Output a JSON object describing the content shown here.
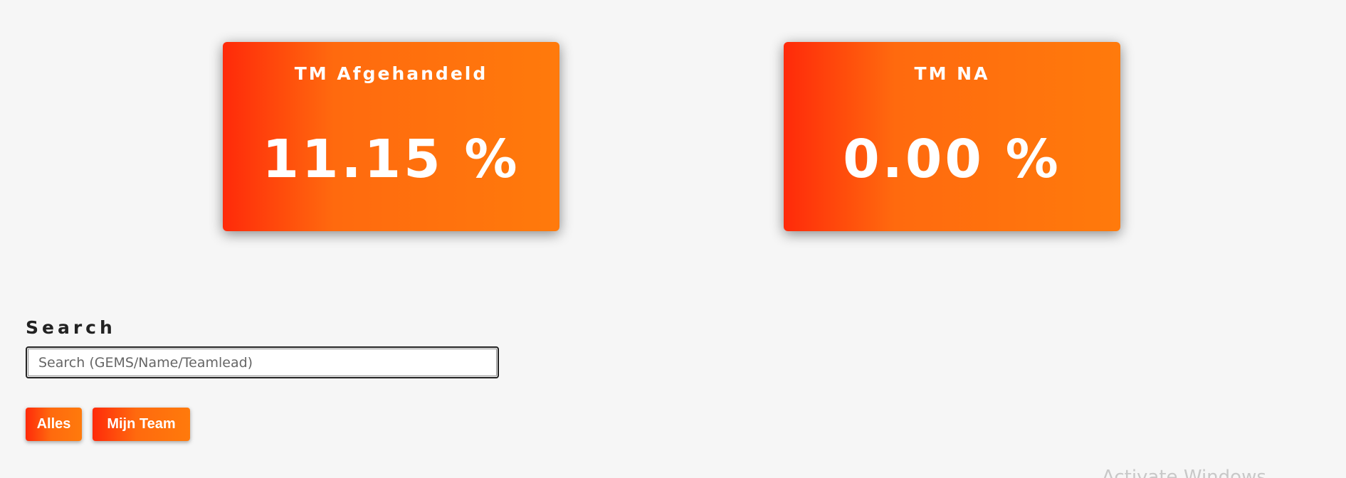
{
  "kpis": [
    {
      "title": "TM Afgehandeld",
      "value": "11.15 %"
    },
    {
      "title": "TM NA",
      "value": "0.00 %"
    }
  ],
  "search": {
    "label": "Search",
    "placeholder": "Search (GEMS/Name/Teamlead)",
    "value": ""
  },
  "filters": {
    "all_label": "Alles",
    "my_team_label": "Mijn Team"
  },
  "watermark": "Activate Windows",
  "colors": {
    "accent_start": "#ff2a0a",
    "accent_end": "#ff7a0c",
    "background": "#f6f6f6"
  }
}
